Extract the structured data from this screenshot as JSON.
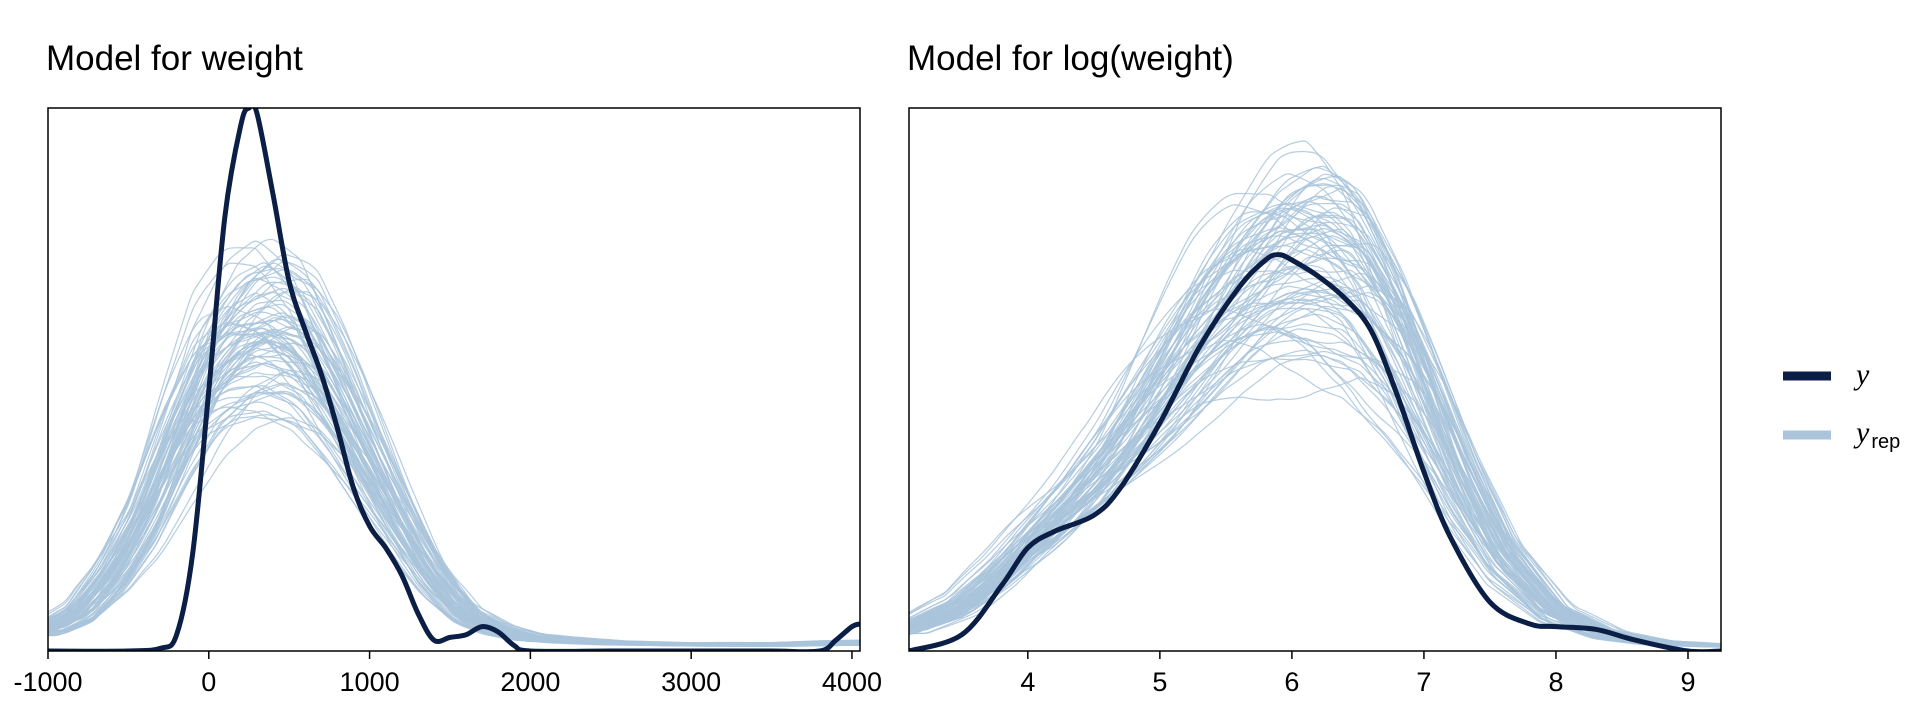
{
  "chart_data": [
    {
      "type": "line",
      "subtype": "density-overlay",
      "title": "Model for weight",
      "xlabel": "",
      "ylabel": "",
      "xlim": [
        -1000,
        4050
      ],
      "ylim": [
        0,
        1.0
      ],
      "xticks": [
        -1000,
        0,
        1000,
        2000,
        3000,
        4000
      ],
      "xtick_labels": [
        "-1000",
        "0",
        "1000",
        "2000",
        "3000",
        "4000"
      ],
      "yticks_shown": false,
      "grid": false,
      "series": [
        {
          "name": "y",
          "color": "#0b1e45",
          "x": [
            -1000,
            -500,
            -300,
            -200,
            -100,
            0,
            100,
            200,
            250,
            300,
            400,
            500,
            600,
            700,
            800,
            900,
            1000,
            1100,
            1200,
            1300,
            1400,
            1500,
            1600,
            1700,
            1800,
            1900,
            2000,
            2500,
            3000,
            3500,
            3800,
            3900,
            4000,
            4050
          ],
          "y": [
            0,
            0,
            0.005,
            0.03,
            0.18,
            0.48,
            0.8,
            0.97,
            1.0,
            0.99,
            0.84,
            0.68,
            0.59,
            0.51,
            0.41,
            0.3,
            0.23,
            0.19,
            0.14,
            0.07,
            0.02,
            0.025,
            0.03,
            0.045,
            0.035,
            0.01,
            0,
            0,
            0,
            0,
            0,
            0.02,
            0.045,
            0.05
          ]
        }
      ],
      "yrep": {
        "name": "y_rep",
        "color": "#a9c4db",
        "count": 80,
        "template_x": [
          -1000,
          -800,
          -600,
          -400,
          -200,
          0,
          200,
          400,
          600,
          800,
          1000,
          1200,
          1400,
          1600,
          1800,
          2000,
          2200,
          2500,
          3000,
          3500,
          4000,
          4050
        ],
        "template_y": [
          0.04,
          0.07,
          0.14,
          0.24,
          0.38,
          0.5,
          0.56,
          0.58,
          0.55,
          0.46,
          0.35,
          0.24,
          0.14,
          0.07,
          0.04,
          0.025,
          0.02,
          0.015,
          0.012,
          0.012,
          0.015,
          0.015
        ]
      }
    },
    {
      "type": "line",
      "subtype": "density-overlay",
      "title": "Model for log(weight)",
      "xlabel": "",
      "ylabel": "",
      "xlim": [
        3.1,
        9.25
      ],
      "ylim": [
        0,
        1.0
      ],
      "xticks": [
        4,
        5,
        6,
        7,
        8,
        9
      ],
      "xtick_labels": [
        "4",
        "5",
        "6",
        "7",
        "8",
        "9"
      ],
      "yticks_shown": false,
      "grid": false,
      "series": [
        {
          "name": "y",
          "color": "#0b1e45",
          "x": [
            3.1,
            3.5,
            3.8,
            4.0,
            4.2,
            4.5,
            4.7,
            5.0,
            5.3,
            5.6,
            5.8,
            5.9,
            6.0,
            6.2,
            6.4,
            6.6,
            6.8,
            7.0,
            7.2,
            7.5,
            7.8,
            8.0,
            8.3,
            8.6,
            9.0,
            9.25
          ],
          "y": [
            0,
            0.03,
            0.12,
            0.19,
            0.22,
            0.25,
            0.3,
            0.42,
            0.56,
            0.67,
            0.72,
            0.73,
            0.72,
            0.69,
            0.65,
            0.59,
            0.47,
            0.33,
            0.21,
            0.09,
            0.05,
            0.045,
            0.04,
            0.02,
            0.0,
            0.0
          ]
        }
      ],
      "yrep": {
        "name": "y_rep",
        "color": "#a9c4db",
        "count": 80,
        "template_x": [
          3.1,
          3.5,
          3.8,
          4.0,
          4.3,
          4.6,
          5.0,
          5.3,
          5.6,
          5.9,
          6.2,
          6.5,
          6.8,
          7.0,
          7.3,
          7.6,
          8.0,
          8.4,
          8.8,
          9.25
        ],
        "template_y": [
          0.04,
          0.08,
          0.14,
          0.19,
          0.26,
          0.34,
          0.47,
          0.57,
          0.65,
          0.7,
          0.71,
          0.67,
          0.56,
          0.46,
          0.3,
          0.17,
          0.07,
          0.03,
          0.015,
          0.01
        ]
      }
    }
  ],
  "legend": {
    "placement": "right",
    "items": [
      {
        "label": "y",
        "subscript": "",
        "color": "#0b1e45"
      },
      {
        "label": "y",
        "subscript": "rep",
        "color": "#a9c4db"
      }
    ]
  }
}
